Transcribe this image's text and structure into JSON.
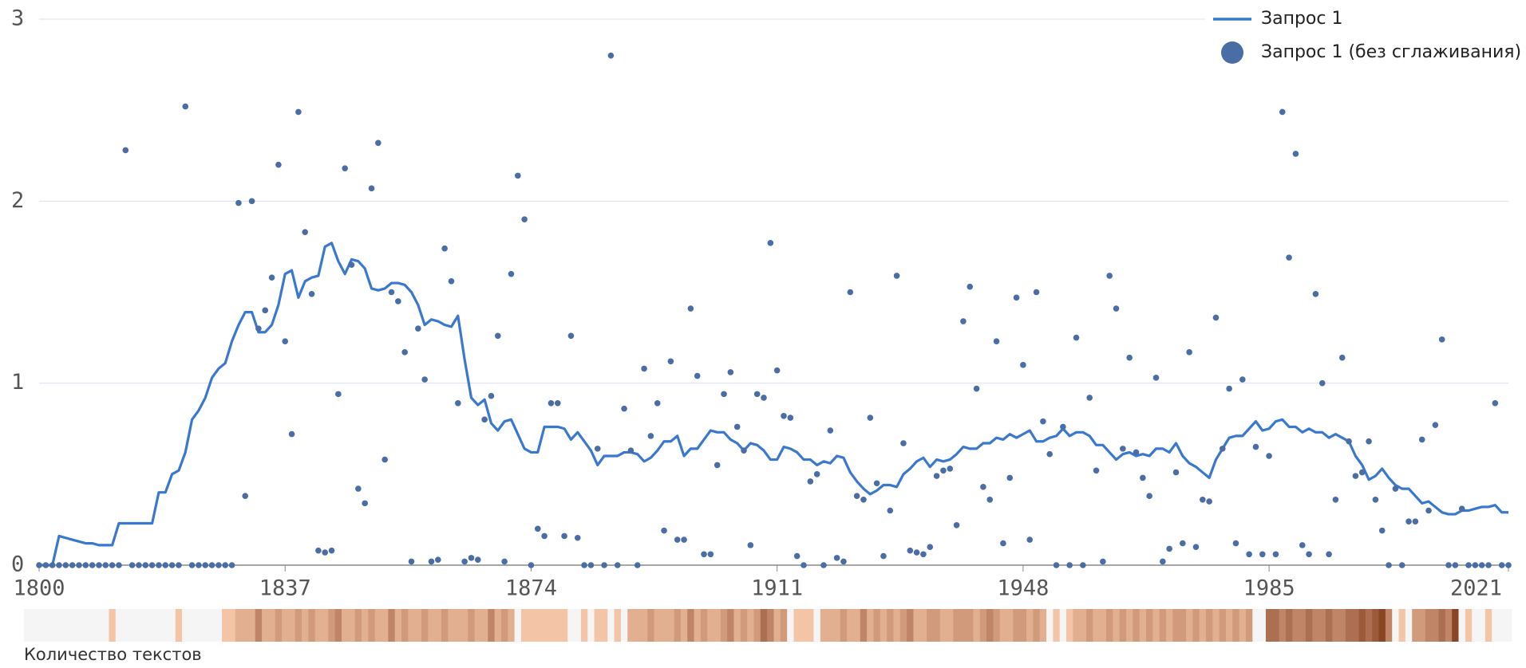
{
  "chart_data": {
    "type": "line",
    "xlim": [
      1800,
      2021
    ],
    "xticks": [
      1800,
      1837,
      1874,
      1911,
      1948,
      1985,
      2021
    ],
    "ylim": [
      0,
      3
    ],
    "yticks": [
      0,
      1,
      2,
      3
    ],
    "grid": true,
    "legend": "top-right",
    "x": [
      1800,
      1801,
      1802,
      1803,
      1804,
      1805,
      1806,
      1807,
      1808,
      1809,
      1810,
      1811,
      1812,
      1813,
      1814,
      1815,
      1816,
      1817,
      1818,
      1819,
      1820,
      1821,
      1822,
      1823,
      1824,
      1825,
      1826,
      1827,
      1828,
      1829,
      1830,
      1831,
      1832,
      1833,
      1834,
      1835,
      1836,
      1837,
      1838,
      1839,
      1840,
      1841,
      1842,
      1843,
      1844,
      1845,
      1846,
      1847,
      1848,
      1849,
      1850,
      1851,
      1852,
      1853,
      1854,
      1855,
      1856,
      1857,
      1858,
      1859,
      1860,
      1861,
      1862,
      1863,
      1864,
      1865,
      1866,
      1867,
      1868,
      1869,
      1870,
      1871,
      1872,
      1873,
      1874,
      1875,
      1876,
      1877,
      1878,
      1879,
      1880,
      1881,
      1882,
      1883,
      1884,
      1885,
      1886,
      1887,
      1888,
      1889,
      1890,
      1891,
      1892,
      1893,
      1894,
      1895,
      1896,
      1897,
      1898,
      1899,
      1900,
      1901,
      1902,
      1903,
      1904,
      1905,
      1906,
      1907,
      1908,
      1909,
      1910,
      1911,
      1912,
      1913,
      1914,
      1915,
      1916,
      1917,
      1918,
      1919,
      1920,
      1921,
      1922,
      1923,
      1924,
      1925,
      1926,
      1927,
      1928,
      1929,
      1930,
      1931,
      1932,
      1933,
      1934,
      1935,
      1936,
      1937,
      1938,
      1939,
      1940,
      1941,
      1942,
      1943,
      1944,
      1945,
      1946,
      1947,
      1948,
      1949,
      1950,
      1951,
      1952,
      1953,
      1954,
      1955,
      1956,
      1957,
      1958,
      1959,
      1960,
      1961,
      1962,
      1963,
      1964,
      1965,
      1966,
      1967,
      1968,
      1969,
      1970,
      1971,
      1972,
      1973,
      1974,
      1975,
      1976,
      1977,
      1978,
      1979,
      1980,
      1981,
      1982,
      1983,
      1984,
      1985,
      1986,
      1987,
      1988,
      1989,
      1990,
      1991,
      1992,
      1993,
      1994,
      1995,
      1996,
      1997,
      1998,
      1999,
      2000,
      2001,
      2002,
      2003,
      2004,
      2005,
      2006,
      2007,
      2008,
      2009,
      2010,
      2011,
      2012,
      2013,
      2014,
      2015,
      2016,
      2017,
      2018,
      2019,
      2020,
      2021
    ],
    "series": [
      {
        "name": "Запрос 1",
        "type": "line",
        "color": "#3a78cf",
        "values": [
          0,
          0,
          0,
          0.16,
          0.15,
          0.14,
          0.13,
          0.12,
          0.12,
          0.11,
          0.11,
          0.11,
          0.23,
          0.23,
          0.23,
          0.23,
          0.23,
          0.23,
          0.4,
          0.4,
          0.5,
          0.52,
          0.62,
          0.8,
          0.85,
          0.92,
          1.03,
          1.08,
          1.11,
          1.23,
          1.32,
          1.39,
          1.39,
          1.28,
          1.28,
          1.32,
          1.43,
          1.6,
          1.62,
          1.47,
          1.56,
          1.58,
          1.59,
          1.75,
          1.77,
          1.67,
          1.6,
          1.68,
          1.67,
          1.63,
          1.52,
          1.51,
          1.52,
          1.55,
          1.55,
          1.54,
          1.5,
          1.43,
          1.32,
          1.35,
          1.34,
          1.32,
          1.31,
          1.37,
          1.13,
          0.92,
          0.88,
          0.91,
          0.78,
          0.74,
          0.79,
          0.8,
          0.72,
          0.64,
          0.62,
          0.62,
          0.76,
          0.76,
          0.76,
          0.75,
          0.69,
          0.73,
          0.68,
          0.63,
          0.55,
          0.6,
          0.6,
          0.6,
          0.62,
          0.62,
          0.61,
          0.57,
          0.59,
          0.63,
          0.68,
          0.68,
          0.71,
          0.6,
          0.64,
          0.64,
          0.69,
          0.74,
          0.73,
          0.73,
          0.69,
          0.67,
          0.63,
          0.67,
          0.66,
          0.63,
          0.58,
          0.58,
          0.65,
          0.64,
          0.62,
          0.58,
          0.58,
          0.55,
          0.57,
          0.56,
          0.6,
          0.59,
          0.51,
          0.46,
          0.42,
          0.39,
          0.41,
          0.44,
          0.44,
          0.43,
          0.5,
          0.53,
          0.57,
          0.59,
          0.54,
          0.58,
          0.57,
          0.58,
          0.61,
          0.65,
          0.64,
          0.64,
          0.67,
          0.67,
          0.7,
          0.69,
          0.72,
          0.7,
          0.72,
          0.74,
          0.68,
          0.68,
          0.7,
          0.71,
          0.75,
          0.71,
          0.73,
          0.73,
          0.71,
          0.66,
          0.66,
          0.62,
          0.58,
          0.61,
          0.62,
          0.6,
          0.61,
          0.6,
          0.64,
          0.64,
          0.62,
          0.67,
          0.6,
          0.56,
          0.54,
          0.51,
          0.48,
          0.58,
          0.64,
          0.7,
          0.71,
          0.71,
          0.75,
          0.79,
          0.74,
          0.75,
          0.79,
          0.8,
          0.76,
          0.76,
          0.73,
          0.75,
          0.73,
          0.73,
          0.7,
          0.72,
          0.7,
          0.68,
          0.6,
          0.55,
          0.47,
          0.49,
          0.53,
          0.48,
          0.44,
          0.42,
          0.42,
          0.38,
          0.34,
          0.35,
          0.32,
          0.29,
          0.28,
          0.28,
          0.3,
          0.3,
          0.31,
          0.32,
          0.32,
          0.33,
          0.29,
          0.29
        ]
      },
      {
        "name": "Запрос 1 (без сглаживания)",
        "type": "scatter",
        "color": "#4a6da6",
        "values": [
          0,
          0,
          0,
          0,
          0,
          0,
          0,
          0,
          0,
          0,
          0,
          0,
          0,
          2.28,
          0,
          0,
          0,
          0,
          0,
          0,
          0,
          0,
          2.52,
          0,
          0,
          0,
          0,
          0,
          0,
          0,
          1.99,
          0.38,
          2.0,
          1.3,
          1.4,
          1.58,
          2.2,
          1.23,
          0.72,
          2.49,
          1.83,
          1.49,
          0.08,
          0.07,
          0.08,
          0.94,
          2.18,
          1.65,
          0.42,
          0.34,
          2.07,
          2.32,
          0.58,
          1.5,
          1.45,
          1.17,
          0.02,
          1.3,
          1.02,
          0.02,
          0.03,
          1.74,
          1.56,
          0.89,
          0.02,
          0.04,
          0.03,
          0.8,
          0.93,
          1.26,
          0.02,
          1.6,
          2.14,
          1.9,
          0,
          0.2,
          0.16,
          0.89,
          0.89,
          0.16,
          1.26,
          0.15,
          0,
          0,
          0.64,
          0,
          2.8,
          0,
          0.86,
          0.63,
          0,
          1.08,
          0.71,
          0.89,
          0.19,
          1.12,
          0.14,
          0.14,
          1.41,
          1.04,
          0.06,
          0.06,
          0.55,
          0.94,
          1.06,
          0.76,
          0.63,
          0.11,
          0.94,
          0.92,
          1.77,
          1.07,
          0.82,
          0.81,
          0.05,
          0,
          0.46,
          0.5,
          0,
          0.74,
          0.04,
          0.02,
          1.5,
          0.38,
          0.36,
          0.81,
          0.45,
          0.05,
          0.3,
          1.59,
          0.67,
          0.08,
          0.07,
          0.06,
          0.1,
          0.49,
          0.52,
          0.53,
          0.22,
          1.34,
          1.53,
          0.97,
          0.43,
          0.36,
          1.23,
          0.12,
          0.48,
          1.47,
          1.1,
          0.14,
          1.5,
          0.79,
          0.61,
          0,
          0.76,
          0,
          1.25,
          0,
          0.92,
          0.52,
          0.02,
          1.59,
          1.41,
          0.64,
          1.14,
          0.62,
          0.48,
          0.38,
          1.03,
          0.02,
          0.09,
          0.51,
          0.12,
          1.17,
          0.1,
          0.36,
          0.35,
          1.36,
          0.64,
          0.97,
          0.12,
          1.02,
          0.06,
          0.65,
          0.06,
          0.6,
          0.06,
          2.49,
          1.69,
          2.26,
          0.11,
          0.06,
          1.49,
          1.0,
          0.06,
          0.36,
          1.14,
          0.68,
          0.49,
          0.51,
          0.68,
          0.36,
          0.19,
          0,
          0.42,
          0,
          0.24,
          0.24,
          0.69,
          0.3,
          0.77,
          1.24,
          0,
          0,
          0.31,
          0,
          0,
          0,
          0,
          0.89,
          0,
          0
        ]
      }
    ],
    "heatmap": {
      "label": "Количество текстов",
      "empty_color": "#f5f5f5",
      "color_scale": [
        "#f3c4a6",
        "#8a4526"
      ],
      "values": [
        0,
        0,
        0,
        0,
        0,
        0,
        0,
        0,
        0,
        0,
        0,
        3,
        0,
        0,
        0,
        0,
        0,
        0,
        0,
        0,
        0,
        3,
        0,
        0,
        0,
        0,
        0,
        0,
        3,
        3,
        4,
        4,
        4,
        6,
        4,
        4,
        5,
        4,
        4,
        5,
        4,
        5,
        4,
        4,
        5,
        6,
        4,
        4,
        5,
        4,
        5,
        4,
        4,
        6,
        4,
        5,
        4,
        4,
        5,
        4,
        4,
        5,
        4,
        4,
        4,
        5,
        4,
        4,
        6,
        4,
        5,
        4,
        0,
        3,
        3,
        3,
        3,
        3,
        3,
        3,
        0,
        0,
        3,
        0,
        3,
        3,
        0,
        3,
        0,
        4,
        4,
        4,
        5,
        4,
        4,
        4,
        5,
        4,
        6,
        4,
        5,
        4,
        4,
        5,
        6,
        4,
        5,
        4,
        5,
        7,
        6,
        4,
        5,
        0,
        3,
        3,
        3,
        0,
        4,
        4,
        4,
        5,
        4,
        4,
        6,
        4,
        5,
        4,
        5,
        4,
        5,
        6,
        4,
        4,
        5,
        5,
        4,
        4,
        5,
        5,
        5,
        4,
        5,
        6,
        5,
        4,
        4,
        5,
        5,
        4,
        5,
        4,
        0,
        3,
        0,
        3,
        4,
        4,
        5,
        4,
        4,
        5,
        4,
        5,
        4,
        5,
        4,
        5,
        4,
        5,
        4,
        5,
        5,
        4,
        5,
        4,
        5,
        4,
        5,
        4,
        5,
        4,
        5,
        0,
        0,
        7,
        7,
        6,
        7,
        6,
        6,
        7,
        6,
        6,
        7,
        6,
        6,
        7,
        7,
        8,
        7,
        8,
        9,
        6,
        0,
        3,
        0,
        5,
        5,
        6,
        6,
        7,
        6,
        9,
        0,
        3,
        0,
        0,
        3,
        0,
        0,
        0
      ]
    }
  }
}
